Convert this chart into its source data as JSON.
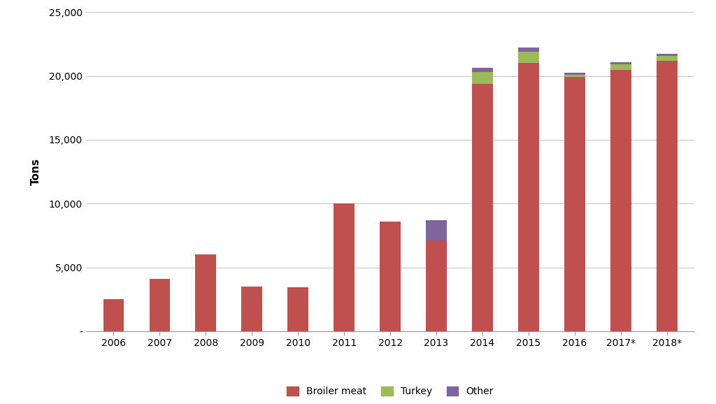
{
  "years": [
    "2006",
    "2007",
    "2008",
    "2009",
    "2010",
    "2011",
    "2012",
    "2013",
    "2014",
    "2015",
    "2016",
    "2017*",
    "2018*"
  ],
  "broiler_meat": [
    2500,
    4100,
    6000,
    3500,
    3450,
    10000,
    8600,
    7100,
    19400,
    21000,
    19900,
    20500,
    21200
  ],
  "turkey": [
    0,
    0,
    0,
    0,
    0,
    0,
    0,
    0,
    900,
    900,
    200,
    400,
    350
  ],
  "other": [
    0,
    0,
    0,
    0,
    0,
    0,
    0,
    1600,
    350,
    300,
    150,
    150,
    200
  ],
  "broiler_color": "#C0504D",
  "turkey_color": "#9BBB59",
  "other_color": "#8064A2",
  "background_color": "#FFFFFF",
  "grid_color": "#C8C8C8",
  "ylabel": "Tons",
  "ylim": [
    0,
    25000
  ],
  "yticks": [
    0,
    5000,
    10000,
    15000,
    20000,
    25000
  ],
  "ytick_labels": [
    "-",
    "5,000",
    "10,000",
    "15,000",
    "20,000",
    "25,000"
  ],
  "legend_labels": [
    "Broiler meat",
    "Turkey",
    "Other"
  ],
  "bar_width": 0.45,
  "axis_fontsize": 11,
  "tick_fontsize": 10,
  "legend_fontsize": 10
}
